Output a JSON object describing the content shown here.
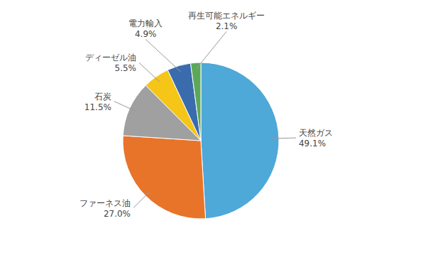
{
  "chart_data": {
    "type": "pie",
    "categories": [
      "天然ガス",
      "ファーネス油",
      "石炭",
      "ディーゼル油",
      "電力輸入",
      "再生可能エネルギー"
    ],
    "values": [
      49.1,
      27.0,
      11.5,
      5.5,
      4.9,
      2.1
    ],
    "value_labels": [
      "49.1%",
      "27.0%",
      "11.5%",
      "5.5%",
      "4.9%",
      "2.1%"
    ],
    "colors": [
      "#4EA8D8",
      "#E8742A",
      "#A0A0A0",
      "#F5C518",
      "#3A6BAD",
      "#5BA85A"
    ],
    "data_labels": true
  }
}
